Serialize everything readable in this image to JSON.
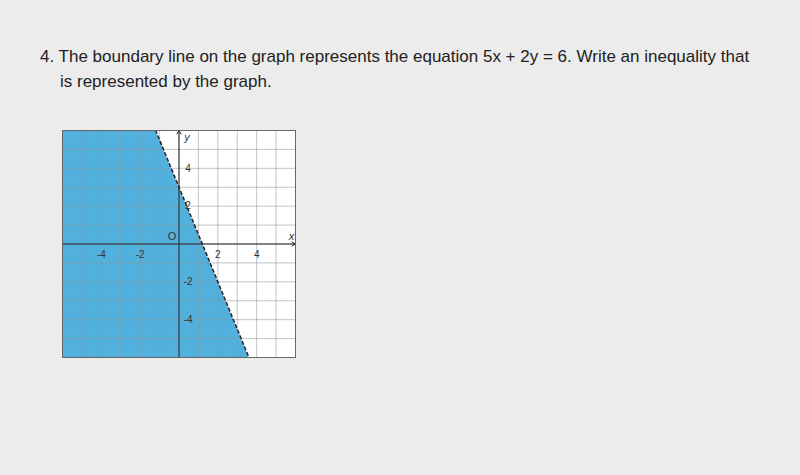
{
  "question": {
    "number": "4.",
    "text": "The boundary line on the graph represents the equation 5x + 2y = 6. Write an inequality that is represented by the graph."
  },
  "chart_data": {
    "type": "inequality",
    "xlim": [
      -6,
      6
    ],
    "ylim": [
      -6,
      6
    ],
    "xticks": [
      -4,
      -2,
      2,
      4
    ],
    "yticks": [
      -4,
      -2,
      2,
      4
    ],
    "x_label": "x",
    "y_label": "y",
    "origin_label": "O",
    "grid": true,
    "boundary": {
      "x": [
        -1.2,
        3.6
      ],
      "y": [
        6,
        -6
      ],
      "line_style": "dashed"
    },
    "color": "#3fa7d9"
  }
}
